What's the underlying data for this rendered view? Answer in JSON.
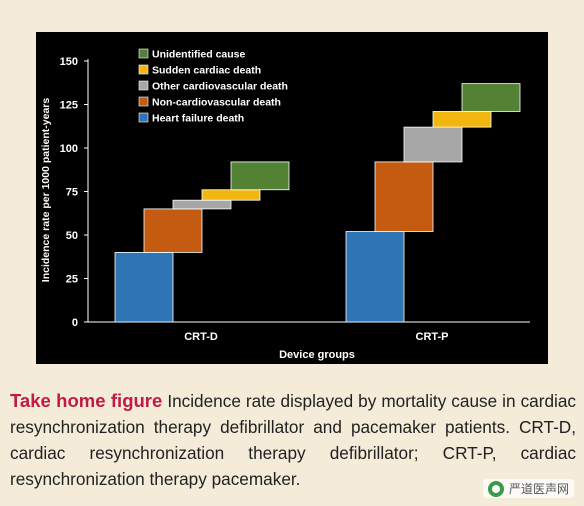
{
  "chart_data": {
    "type": "bar",
    "subtype": "stacked-waterfall",
    "title": "",
    "xlabel": "Device groups",
    "ylabel": "Incidence rate per 1000 patient-years",
    "ylim": [
      0,
      150
    ],
    "yticks": [
      0,
      25,
      50,
      75,
      100,
      125,
      150
    ],
    "categories": [
      "CRT-D",
      "CRT-P"
    ],
    "series": [
      {
        "name": "Heart failure death",
        "color": "#2e75b6",
        "values": [
          40,
          52
        ]
      },
      {
        "name": "Non-cardiovascular death",
        "color": "#c55a11",
        "values": [
          25,
          40
        ]
      },
      {
        "name": "Other cardiovascular death",
        "color": "#a6a6a6",
        "values": [
          5,
          20
        ]
      },
      {
        "name": "Sudden cardiac death",
        "color": "#f2b70f",
        "values": [
          6,
          9
        ]
      },
      {
        "name": "Unidentified cause",
        "color": "#548235",
        "values": [
          16,
          16
        ]
      }
    ],
    "legend": {
      "position": "top-left",
      "order": [
        "Unidentified cause",
        "Sudden cardiac death",
        "Other cardiovascular death",
        "Non-cardiovascular death",
        "Heart failure death"
      ]
    },
    "grid": false,
    "background": "#000000"
  },
  "caption": {
    "lead": "Take home figure",
    "text": " Incidence rate displayed by mortality cause in cardiac resynchronization therapy defibrillator and pacemaker patients. CRT-D, cardiac resynchronization therapy defibrillator; CRT-P, cardiac resynchronization therapy pacemaker."
  },
  "watermark": {
    "text": "严道医声网"
  }
}
